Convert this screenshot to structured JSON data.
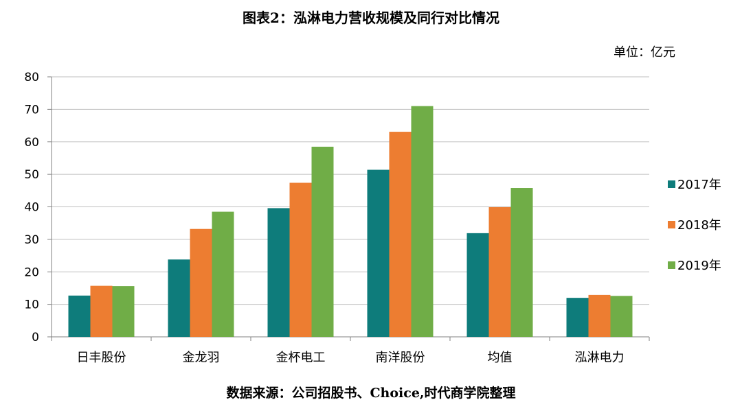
{
  "title": "图表2：泓淋电力营收规模及同行对比情况",
  "unit_label": "单位：亿元",
  "source_note": "数据来源：公司招股书、Choice,时代商学院整理",
  "colors": {
    "s2017": "#0E7C7B",
    "s2018": "#ED7D31",
    "s2019": "#70AD47",
    "grid": "#BFBFBF",
    "axis": "#808080"
  },
  "chart_data": {
    "type": "bar",
    "categories": [
      "日丰股份",
      "金龙羽",
      "金杯电工",
      "南洋股份",
      "均值",
      "泓淋电力"
    ],
    "series": [
      {
        "name": "2017年",
        "values": [
          12.7,
          23.8,
          39.6,
          51.4,
          31.9,
          12.0
        ]
      },
      {
        "name": "2018年",
        "values": [
          15.7,
          33.2,
          47.4,
          63.1,
          39.9,
          12.9
        ]
      },
      {
        "name": "2019年",
        "values": [
          15.6,
          38.5,
          58.5,
          71.0,
          45.8,
          12.6
        ]
      }
    ],
    "ylim": [
      0,
      80
    ],
    "yticks": [
      0,
      10,
      20,
      30,
      40,
      50,
      60,
      70,
      80
    ],
    "grid": true,
    "legend_position": "right"
  }
}
